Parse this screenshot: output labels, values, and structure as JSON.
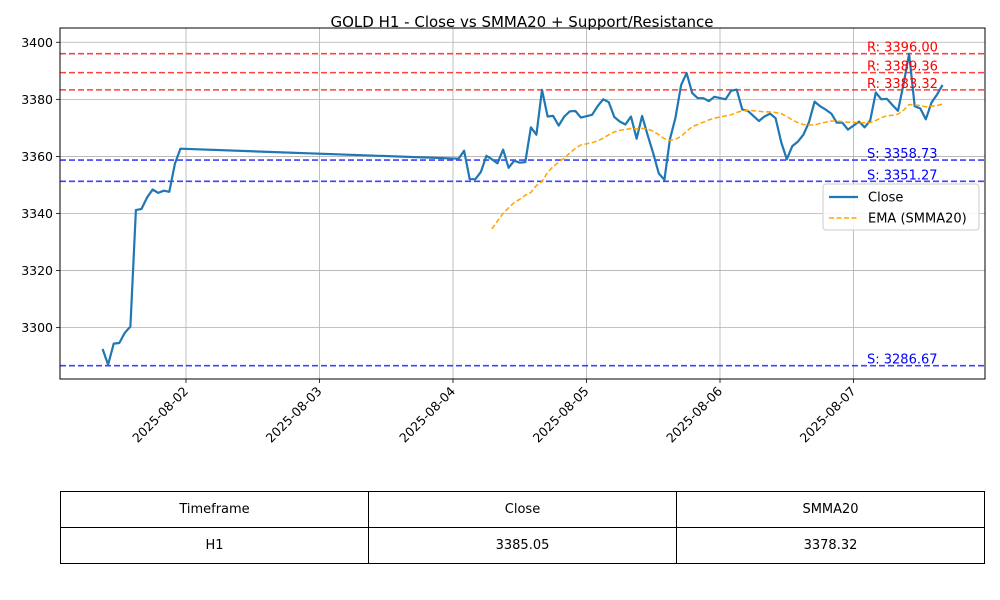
{
  "chart_data": {
    "type": "line",
    "title": "GOLD H1 - Close vs SMMA20 + Support/Resistance",
    "xlabel": "",
    "ylabel": "",
    "x_tick_labels": [
      "2025-08-02",
      "2025-08-03",
      "2025-08-04",
      "2025-08-05",
      "2025-08-06",
      "2025-08-07"
    ],
    "y_ticks": [
      3300,
      3320,
      3340,
      3360,
      3380,
      3400
    ],
    "ylim": [
      3282,
      3405
    ],
    "grid": true,
    "legend_position": "center-right",
    "series": [
      {
        "name": "Close",
        "color": "#1f77b4",
        "style": "solid",
        "points": [
          [
            "2025-08-01T09:00",
            3292.5
          ],
          [
            "2025-08-01T10:00",
            3287.0
          ],
          [
            "2025-08-01T11:00",
            3294.4
          ],
          [
            "2025-08-01T12:00",
            3294.6
          ],
          [
            "2025-08-01T13:00",
            3298.2
          ],
          [
            "2025-08-01T14:00",
            3300.4
          ],
          [
            "2025-08-01T15:00",
            3341.2
          ],
          [
            "2025-08-01T16:00",
            3341.6
          ],
          [
            "2025-08-01T17:00",
            3345.6
          ],
          [
            "2025-08-01T18:00",
            3348.4
          ],
          [
            "2025-08-01T19:00",
            3347.2
          ],
          [
            "2025-08-01T20:00",
            3348.0
          ],
          [
            "2025-08-01T21:00",
            3347.6
          ],
          [
            "2025-08-01T22:00",
            3357.4
          ],
          [
            "2025-08-01T23:00",
            3362.7
          ],
          [
            "2025-08-04T01:00",
            3359.2
          ],
          [
            "2025-08-04T02:00",
            3362.0
          ],
          [
            "2025-08-04T03:00",
            3352.0
          ],
          [
            "2025-08-04T04:00",
            3352.0
          ],
          [
            "2025-08-04T05:00",
            3354.5
          ],
          [
            "2025-08-04T06:00",
            3360.2
          ],
          [
            "2025-08-04T07:00",
            3359.0
          ],
          [
            "2025-08-04T08:00",
            3357.6
          ],
          [
            "2025-08-04T09:00",
            3362.4
          ],
          [
            "2025-08-04T10:00",
            3356.0
          ],
          [
            "2025-08-04T11:00",
            3358.5
          ],
          [
            "2025-08-04T12:00",
            3357.8
          ],
          [
            "2025-08-04T13:00",
            3358.0
          ],
          [
            "2025-08-04T14:00",
            3370.2
          ],
          [
            "2025-08-04T15:00",
            3367.6
          ],
          [
            "2025-08-04T16:00",
            3383.3
          ],
          [
            "2025-08-04T17:00",
            3374.0
          ],
          [
            "2025-08-04T18:00",
            3374.2
          ],
          [
            "2025-08-04T19:00",
            3370.8
          ],
          [
            "2025-08-04T20:00",
            3374.0
          ],
          [
            "2025-08-04T21:00",
            3375.8
          ],
          [
            "2025-08-04T22:00",
            3375.9
          ],
          [
            "2025-08-04T23:00",
            3373.6
          ],
          [
            "2025-08-05T01:00",
            3374.6
          ],
          [
            "2025-08-05T02:00",
            3377.6
          ],
          [
            "2025-08-05T03:00",
            3380.0
          ],
          [
            "2025-08-05T04:00",
            3379.0
          ],
          [
            "2025-08-05T05:00",
            3373.8
          ],
          [
            "2025-08-05T06:00",
            3372.2
          ],
          [
            "2025-08-05T07:00",
            3371.2
          ],
          [
            "2025-08-05T08:00",
            3374.0
          ],
          [
            "2025-08-05T09:00",
            3366.2
          ],
          [
            "2025-08-05T10:00",
            3374.2
          ],
          [
            "2025-08-05T11:00",
            3367.4
          ],
          [
            "2025-08-05T12:00",
            3361.0
          ],
          [
            "2025-08-05T13:00",
            3354.0
          ],
          [
            "2025-08-05T14:00",
            3351.8
          ],
          [
            "2025-08-05T15:00",
            3366.0
          ],
          [
            "2025-08-05T16:00",
            3373.6
          ],
          [
            "2025-08-05T17:00",
            3385.0
          ],
          [
            "2025-08-05T18:00",
            3389.2
          ],
          [
            "2025-08-05T19:00",
            3382.2
          ],
          [
            "2025-08-05T20:00",
            3380.4
          ],
          [
            "2025-08-05T21:00",
            3380.4
          ],
          [
            "2025-08-05T22:00",
            3379.4
          ],
          [
            "2025-08-05T23:00",
            3380.9
          ],
          [
            "2025-08-06T01:00",
            3380.0
          ],
          [
            "2025-08-06T02:00",
            3383.0
          ],
          [
            "2025-08-06T03:00",
            3383.4
          ],
          [
            "2025-08-06T04:00",
            3376.4
          ],
          [
            "2025-08-06T05:00",
            3376.0
          ],
          [
            "2025-08-06T06:00",
            3374.2
          ],
          [
            "2025-08-06T07:00",
            3372.4
          ],
          [
            "2025-08-06T08:00",
            3374.0
          ],
          [
            "2025-08-06T09:00",
            3375.0
          ],
          [
            "2025-08-06T10:00",
            3373.4
          ],
          [
            "2025-08-06T11:00",
            3365.0
          ],
          [
            "2025-08-06T12:00",
            3359.0
          ],
          [
            "2025-08-06T13:00",
            3363.6
          ],
          [
            "2025-08-06T14:00",
            3365.2
          ],
          [
            "2025-08-06T15:00",
            3367.6
          ],
          [
            "2025-08-06T16:00",
            3372.0
          ],
          [
            "2025-08-06T17:00",
            3379.2
          ],
          [
            "2025-08-06T18:00",
            3377.6
          ],
          [
            "2025-08-06T19:00",
            3376.4
          ],
          [
            "2025-08-06T20:00",
            3375.0
          ],
          [
            "2025-08-06T21:00",
            3371.8
          ],
          [
            "2025-08-06T22:00",
            3371.8
          ],
          [
            "2025-08-06T23:00",
            3369.4
          ],
          [
            "2025-08-07T01:00",
            3372.2
          ],
          [
            "2025-08-07T02:00",
            3370.2
          ],
          [
            "2025-08-07T03:00",
            3372.6
          ],
          [
            "2025-08-07T04:00",
            3382.4
          ],
          [
            "2025-08-07T05:00",
            3380.0
          ],
          [
            "2025-08-07T06:00",
            3380.2
          ],
          [
            "2025-08-07T07:00",
            3378.0
          ],
          [
            "2025-08-07T08:00",
            3376.0
          ],
          [
            "2025-08-07T09:00",
            3385.4
          ],
          [
            "2025-08-07T10:00",
            3396.0
          ],
          [
            "2025-08-07T11:00",
            3377.6
          ],
          [
            "2025-08-07T12:00",
            3376.8
          ],
          [
            "2025-08-07T13:00",
            3373.0
          ],
          [
            "2025-08-07T14:00",
            3378.8
          ],
          [
            "2025-08-07T15:00",
            3381.6
          ],
          [
            "2025-08-07T16:00",
            3385.05
          ]
        ]
      },
      {
        "name": "EMA (SMMA20)",
        "color": "#ffa500",
        "style": "dashed",
        "points": [
          [
            "2025-08-04T07:00",
            3334.6
          ],
          [
            "2025-08-04T08:00",
            3337.4
          ],
          [
            "2025-08-04T09:00",
            3340.0
          ],
          [
            "2025-08-04T10:00",
            3342.0
          ],
          [
            "2025-08-04T11:00",
            3343.8
          ],
          [
            "2025-08-04T12:00",
            3345.0
          ],
          [
            "2025-08-04T13:00",
            3346.4
          ],
          [
            "2025-08-04T14:00",
            3347.4
          ],
          [
            "2025-08-04T15:00",
            3349.8
          ],
          [
            "2025-08-04T16:00",
            3351.2
          ],
          [
            "2025-08-04T17:00",
            3354.4
          ],
          [
            "2025-08-04T18:00",
            3356.4
          ],
          [
            "2025-08-04T19:00",
            3358.0
          ],
          [
            "2025-08-04T20:00",
            3359.4
          ],
          [
            "2025-08-04T21:00",
            3361.2
          ],
          [
            "2025-08-04T22:00",
            3362.8
          ],
          [
            "2025-08-04T23:00",
            3364.0
          ],
          [
            "2025-08-05T01:00",
            3364.8
          ],
          [
            "2025-08-05T02:00",
            3365.4
          ],
          [
            "2025-08-05T03:00",
            3366.4
          ],
          [
            "2025-08-05T04:00",
            3367.6
          ],
          [
            "2025-08-05T05:00",
            3368.6
          ],
          [
            "2025-08-05T06:00",
            3369.2
          ],
          [
            "2025-08-05T07:00",
            3369.4
          ],
          [
            "2025-08-05T08:00",
            3369.8
          ],
          [
            "2025-08-05T09:00",
            3369.6
          ],
          [
            "2025-08-05T10:00",
            3369.8
          ],
          [
            "2025-08-05T11:00",
            3369.6
          ],
          [
            "2025-08-05T12:00",
            3368.8
          ],
          [
            "2025-08-05T13:00",
            3367.6
          ],
          [
            "2025-08-05T14:00",
            3366.2
          ],
          [
            "2025-08-05T15:00",
            3365.6
          ],
          [
            "2025-08-05T16:00",
            3366.0
          ],
          [
            "2025-08-05T17:00",
            3367.0
          ],
          [
            "2025-08-05T18:00",
            3368.8
          ],
          [
            "2025-08-05T19:00",
            3370.4
          ],
          [
            "2025-08-05T20:00",
            3371.2
          ],
          [
            "2025-08-05T21:00",
            3372.0
          ],
          [
            "2025-08-05T22:00",
            3372.8
          ],
          [
            "2025-08-05T23:00",
            3373.4
          ],
          [
            "2025-08-06T01:00",
            3374.2
          ],
          [
            "2025-08-06T02:00",
            3374.6
          ],
          [
            "2025-08-06T03:00",
            3375.4
          ],
          [
            "2025-08-06T04:00",
            3376.0
          ],
          [
            "2025-08-06T05:00",
            3376.2
          ],
          [
            "2025-08-06T06:00",
            3376.0
          ],
          [
            "2025-08-06T07:00",
            3375.8
          ],
          [
            "2025-08-06T08:00",
            3375.6
          ],
          [
            "2025-08-06T09:00",
            3375.6
          ],
          [
            "2025-08-06T10:00",
            3375.4
          ],
          [
            "2025-08-06T11:00",
            3375.0
          ],
          [
            "2025-08-06T12:00",
            3374.0
          ],
          [
            "2025-08-06T13:00",
            3372.8
          ],
          [
            "2025-08-06T14:00",
            3371.8
          ],
          [
            "2025-08-06T15:00",
            3371.2
          ],
          [
            "2025-08-06T16:00",
            3371.0
          ],
          [
            "2025-08-06T17:00",
            3371.0
          ],
          [
            "2025-08-06T18:00",
            3371.6
          ],
          [
            "2025-08-06T19:00",
            3372.0
          ],
          [
            "2025-08-06T20:00",
            3372.4
          ],
          [
            "2025-08-06T21:00",
            3372.4
          ],
          [
            "2025-08-06T22:00",
            3372.2
          ],
          [
            "2025-08-06T23:00",
            3372.0
          ],
          [
            "2025-08-07T01:00",
            3371.8
          ],
          [
            "2025-08-07T02:00",
            3371.8
          ],
          [
            "2025-08-07T03:00",
            3371.8
          ],
          [
            "2025-08-07T04:00",
            3372.6
          ],
          [
            "2025-08-07T05:00",
            3373.6
          ],
          [
            "2025-08-07T06:00",
            3374.2
          ],
          [
            "2025-08-07T07:00",
            3374.4
          ],
          [
            "2025-08-07T08:00",
            3374.8
          ],
          [
            "2025-08-07T09:00",
            3376.2
          ],
          [
            "2025-08-07T10:00",
            3378.2
          ],
          [
            "2025-08-07T11:00",
            3378.0
          ],
          [
            "2025-08-07T12:00",
            3377.8
          ],
          [
            "2025-08-07T13:00",
            3377.4
          ],
          [
            "2025-08-07T14:00",
            3377.6
          ],
          [
            "2025-08-07T15:00",
            3377.8
          ],
          [
            "2025-08-07T16:00",
            3378.32
          ]
        ]
      }
    ],
    "levels": [
      {
        "kind": "resistance",
        "value": 3396.0,
        "label": "R: 3396.00",
        "color": "#ff0000"
      },
      {
        "kind": "resistance",
        "value": 3389.36,
        "label": "R: 3389.36",
        "color": "#ff0000"
      },
      {
        "kind": "resistance",
        "value": 3383.32,
        "label": "R: 3383.32",
        "color": "#ff0000"
      },
      {
        "kind": "support",
        "value": 3358.73,
        "label": "S: 3358.73",
        "color": "#0000ff"
      },
      {
        "kind": "support",
        "value": 3351.27,
        "label": "S: 3351.27",
        "color": "#0000ff"
      },
      {
        "kind": "support",
        "value": 3286.67,
        "label": "S: 3286.67",
        "color": "#0000ff"
      }
    ]
  },
  "table": {
    "headers": [
      "Timeframe",
      "Close",
      "SMMA20"
    ],
    "rows": [
      [
        "H1",
        "3385.05",
        "3378.32"
      ]
    ]
  }
}
